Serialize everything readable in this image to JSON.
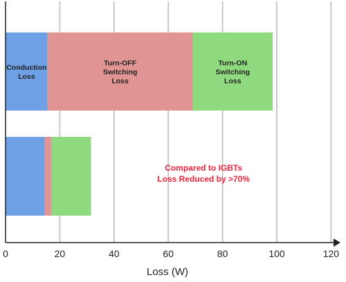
{
  "chart_data": {
    "type": "bar",
    "orientation": "horizontal",
    "stacked": true,
    "xlabel": "Loss (W)",
    "ylabel": "",
    "xlim": [
      0,
      120
    ],
    "xticks": [
      0,
      20,
      40,
      60,
      80,
      100,
      120
    ],
    "grid": "vertical",
    "categories": [
      "",
      ""
    ],
    "series": [
      {
        "key": "conduction",
        "color": "#6ea0e6",
        "values": [
          15.5,
          14.5
        ]
      },
      {
        "key": "turn_off",
        "color": "#e09494",
        "values": [
          53.5,
          2.5
        ]
      },
      {
        "key": "turn_on",
        "color": "#8fd97e",
        "values": [
          29.5,
          14.5
        ]
      }
    ],
    "segment_labels": [
      {
        "bar": 0,
        "series": 0,
        "lines": [
          "Conduction",
          "Loss"
        ]
      },
      {
        "bar": 0,
        "series": 1,
        "lines": [
          "Turn-OFF",
          "Switching",
          "Loss"
        ]
      },
      {
        "bar": 0,
        "series": 2,
        "lines": [
          "Turn-ON",
          "Switching",
          "Loss"
        ]
      }
    ],
    "annotation": {
      "lines": [
        "Compared to IGBTs",
        "Loss Reduced by >70%"
      ],
      "color": "#e8243c",
      "x": 73
    }
  }
}
